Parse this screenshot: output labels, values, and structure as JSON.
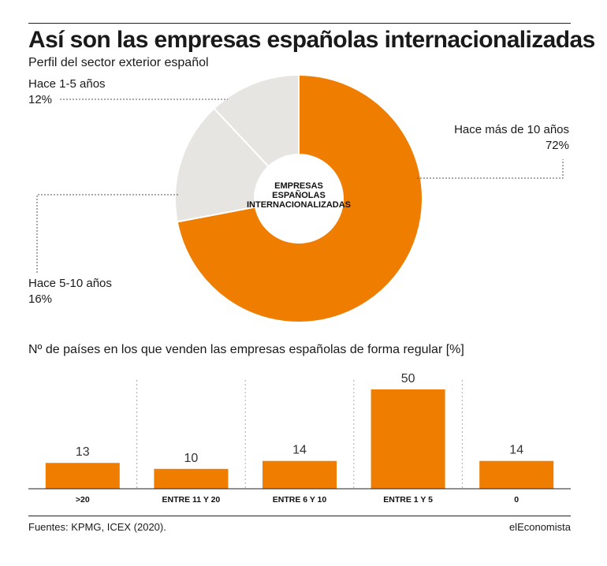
{
  "header": {
    "title": "Así son las empresas españolas internacionalizadas",
    "subtitle": "Perfil del sector exterior español"
  },
  "donut": {
    "center_lines": [
      "EMPRESAS",
      "ESPAÑOLAS",
      "INTERNACIONALIZADAS"
    ],
    "labels": [
      {
        "name": "Hace más de 10 años",
        "pct": "72%"
      },
      {
        "name": "Hace 5-10 años",
        "pct": "16%"
      },
      {
        "name": "Hace 1-5 años",
        "pct": "12%"
      }
    ]
  },
  "bars_section": {
    "title": "Nº de países en los que venden las empresas españolas de forma regular [%]"
  },
  "colors": {
    "accent": "#ef7d00",
    "grey_slice": "#e6e5e2",
    "text": "#1a1a1a"
  },
  "chart_data": [
    {
      "type": "pie",
      "title": "",
      "categories": [
        "Hace más de 10 años",
        "Hace 5-10 años",
        "Hace 1-5 años"
      ],
      "values": [
        72,
        16,
        12
      ],
      "colors": [
        "#ef7d00",
        "#e6e5e2",
        "#e6e5e2"
      ]
    },
    {
      "type": "bar",
      "title": "Nº de países en los que venden las empresas españolas de forma regular [%]",
      "categories": [
        ">20",
        "ENTRE 11 Y 20",
        "ENTRE 6 Y 10",
        "ENTRE 1 Y 5",
        "0"
      ],
      "values": [
        13,
        10,
        14,
        50,
        14
      ],
      "ylim": [
        0,
        50
      ],
      "grid": false
    }
  ],
  "footer": {
    "sources": "Fuentes:  KPMG, ICEX (2020).",
    "brand": "elEconomista"
  }
}
